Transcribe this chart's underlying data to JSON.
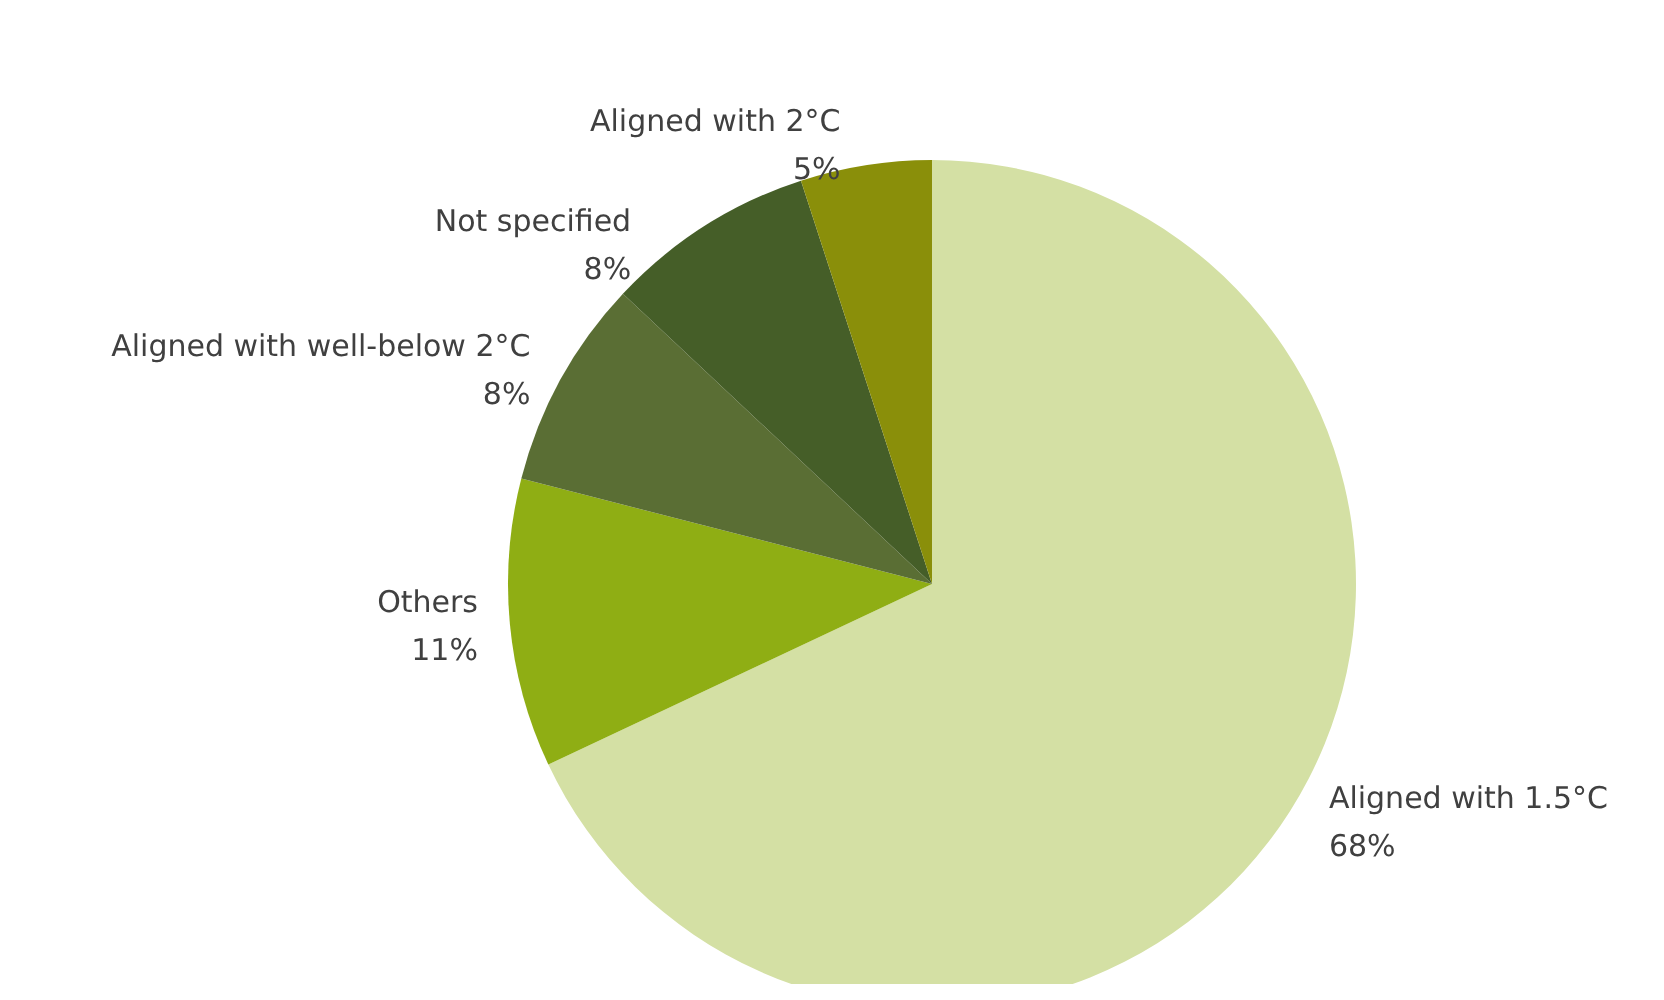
{
  "chart_data": {
    "type": "pie",
    "categories": [
      "Aligned with 1.5°C",
      "Others",
      "Aligned with well-below 2°C",
      "Not specified",
      "Aligned with 2°C"
    ],
    "values": [
      68,
      11,
      8,
      8,
      5
    ],
    "colors": [
      "#d4e0a4",
      "#8fae14",
      "#5a6e34",
      "#455e28",
      "#8a8f0a"
    ],
    "value_labels": [
      "68%",
      "11%",
      "8%",
      "8%",
      "5%"
    ],
    "legend": false
  }
}
